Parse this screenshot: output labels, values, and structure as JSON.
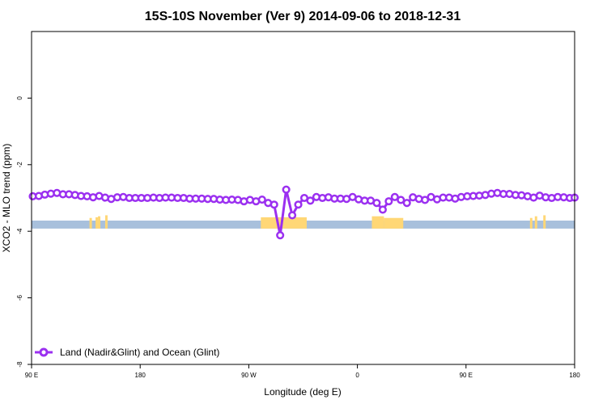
{
  "chart_data": {
    "type": "line",
    "title": "15S-10S November (Ver 9)   2014-09-06 to 2018-12-31",
    "xlabel": "Longitude (deg E)",
    "ylabel": "XCO2 - MLO trend (ppm)",
    "xlim": [
      90,
      540
    ],
    "ylim": [
      -8,
      2
    ],
    "x_ticks": [
      {
        "value": 90,
        "label": "90 E"
      },
      {
        "value": 180,
        "label": "180"
      },
      {
        "value": 270,
        "label": "90 W"
      },
      {
        "value": 360,
        "label": "0"
      },
      {
        "value": 450,
        "label": "90 E"
      },
      {
        "value": 540,
        "label": "180"
      }
    ],
    "y_ticks": [
      {
        "value": 0,
        "label": "0"
      },
      {
        "value": -2,
        "label": "-2"
      },
      {
        "value": -4,
        "label": "-4"
      },
      {
        "value": -6,
        "label": "-6"
      },
      {
        "value": -8,
        "label": "-8"
      }
    ],
    "legend": {
      "position": "bottom-left",
      "entries": [
        "Land (Nadir&Glint) and Ocean (Glint)"
      ]
    },
    "colors": {
      "series": "#9b30f0",
      "ocean": "#a8c0dc",
      "land": "#ffd776",
      "frame": "#000000"
    },
    "surface_band": {
      "y_top": -3.68,
      "y_bottom": -3.92
    },
    "land_segments": [
      {
        "type": "bar",
        "x0": 280,
        "x1": 318,
        "top": -3.58
      },
      {
        "type": "bar",
        "x0": 372,
        "x1": 382,
        "top": -3.55
      },
      {
        "type": "bar",
        "x0": 382,
        "x1": 398,
        "top": -3.6
      },
      {
        "type": "bar",
        "x0": 138,
        "x1": 140,
        "top": -3.6
      },
      {
        "type": "bar",
        "x0": 143,
        "x1": 145,
        "top": -3.58
      },
      {
        "type": "bar",
        "x0": 145,
        "x1": 147,
        "top": -3.55
      },
      {
        "type": "bar",
        "x0": 151,
        "x1": 153,
        "top": -3.52
      },
      {
        "type": "bar",
        "x0": 503,
        "x1": 505,
        "top": -3.6
      },
      {
        "type": "bar",
        "x0": 507,
        "x1": 509,
        "top": -3.55
      },
      {
        "type": "bar",
        "x0": 514,
        "x1": 516,
        "top": -3.52
      }
    ],
    "series": [
      {
        "name": "Land (Nadir&Glint) and Ocean (Glint)",
        "points": [
          [
            91,
            -2.95
          ],
          [
            96,
            -2.94
          ],
          [
            101,
            -2.9
          ],
          [
            106,
            -2.87
          ],
          [
            111,
            -2.85
          ],
          [
            116,
            -2.89
          ],
          [
            121,
            -2.89
          ],
          [
            126,
            -2.91
          ],
          [
            131,
            -2.94
          ],
          [
            136,
            -2.95
          ],
          [
            141,
            -2.98
          ],
          [
            146,
            -2.94
          ],
          [
            151,
            -2.99
          ],
          [
            156,
            -3.03
          ],
          [
            161,
            -2.98
          ],
          [
            166,
            -2.97
          ],
          [
            171,
            -3.0
          ],
          [
            176,
            -3.0
          ],
          [
            181,
            -3.0
          ],
          [
            186,
            -3.0
          ],
          [
            191,
            -2.99
          ],
          [
            196,
            -3.0
          ],
          [
            201,
            -2.99
          ],
          [
            206,
            -2.99
          ],
          [
            211,
            -3.0
          ],
          [
            216,
            -3.0
          ],
          [
            221,
            -3.02
          ],
          [
            226,
            -3.02
          ],
          [
            231,
            -3.02
          ],
          [
            236,
            -3.03
          ],
          [
            241,
            -3.03
          ],
          [
            246,
            -3.05
          ],
          [
            251,
            -3.06
          ],
          [
            256,
            -3.05
          ],
          [
            261,
            -3.06
          ],
          [
            266,
            -3.1
          ],
          [
            271,
            -3.06
          ],
          [
            276,
            -3.1
          ],
          [
            281,
            -3.05
          ],
          [
            286,
            -3.15
          ],
          [
            291,
            -3.2
          ],
          [
            296,
            -4.12
          ],
          [
            301,
            -2.75
          ],
          [
            306,
            -3.52
          ],
          [
            311,
            -3.2
          ],
          [
            316,
            -3.0
          ],
          [
            321,
            -3.08
          ],
          [
            326,
            -2.97
          ],
          [
            331,
            -3.0
          ],
          [
            336,
            -2.98
          ],
          [
            341,
            -3.02
          ],
          [
            346,
            -3.02
          ],
          [
            351,
            -3.03
          ],
          [
            356,
            -2.97
          ],
          [
            361,
            -3.04
          ],
          [
            366,
            -3.08
          ],
          [
            371,
            -3.08
          ],
          [
            376,
            -3.15
          ],
          [
            381,
            -3.35
          ],
          [
            386,
            -3.1
          ],
          [
            391,
            -2.97
          ],
          [
            396,
            -3.06
          ],
          [
            401,
            -3.15
          ],
          [
            406,
            -2.98
          ],
          [
            411,
            -3.03
          ],
          [
            416,
            -3.06
          ],
          [
            421,
            -2.97
          ],
          [
            426,
            -3.04
          ],
          [
            431,
            -2.99
          ],
          [
            436,
            -2.99
          ],
          [
            441,
            -3.02
          ],
          [
            446,
            -2.97
          ],
          [
            451,
            -2.95
          ],
          [
            456,
            -2.94
          ],
          [
            461,
            -2.93
          ],
          [
            466,
            -2.91
          ],
          [
            471,
            -2.87
          ],
          [
            476,
            -2.85
          ],
          [
            481,
            -2.88
          ],
          [
            486,
            -2.88
          ],
          [
            491,
            -2.91
          ],
          [
            496,
            -2.92
          ],
          [
            501,
            -2.95
          ],
          [
            506,
            -2.99
          ],
          [
            511,
            -2.93
          ],
          [
            516,
            -2.98
          ],
          [
            521,
            -3.0
          ],
          [
            526,
            -2.97
          ],
          [
            531,
            -2.98
          ],
          [
            536,
            -3.0
          ],
          [
            540,
            -2.99
          ]
        ]
      }
    ]
  }
}
